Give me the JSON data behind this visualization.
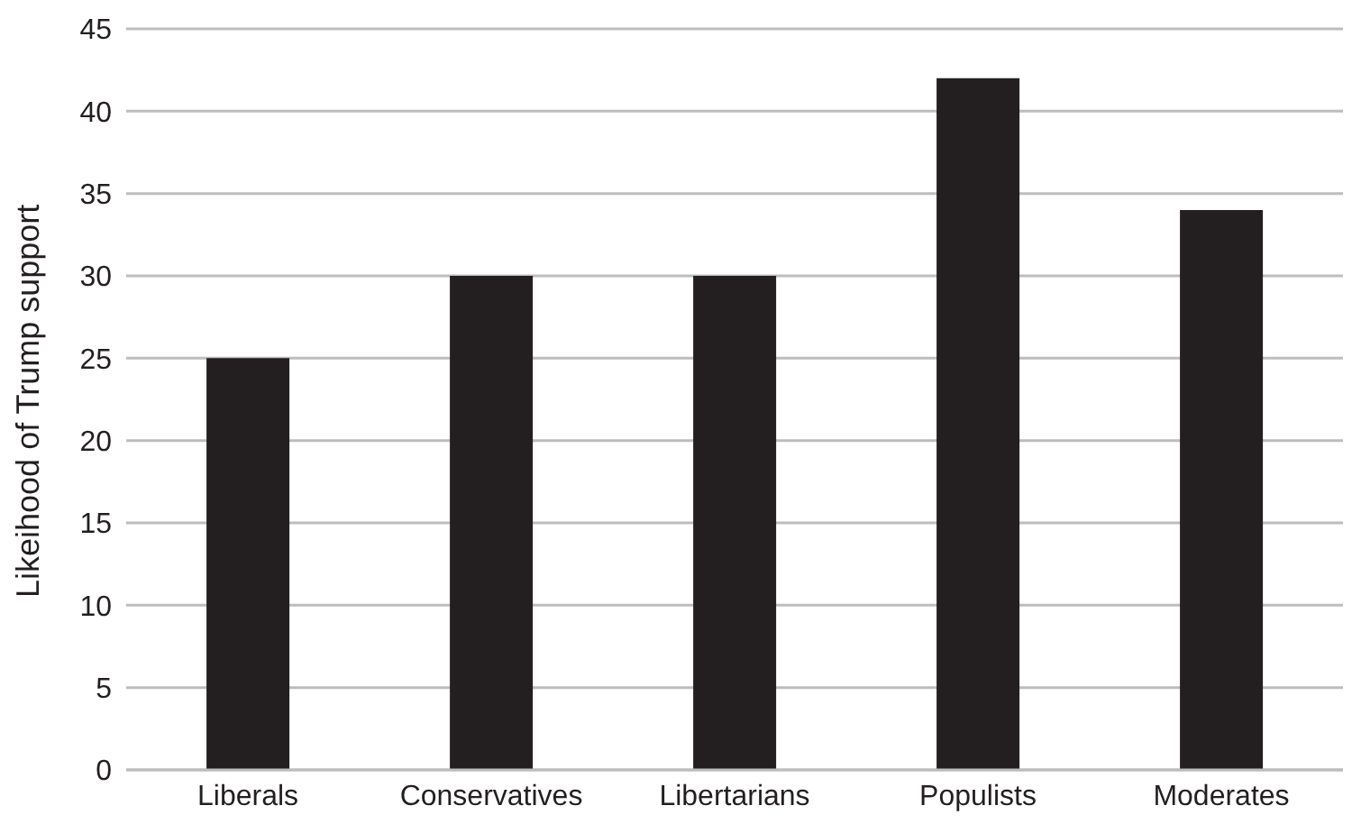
{
  "chart_data": {
    "type": "bar",
    "ylabel": "Likeihood of Trump support",
    "categories": [
      "Liberals",
      "Conservatives",
      "Libertarians",
      "Populists",
      "Moderates"
    ],
    "values": [
      25,
      30,
      30,
      42,
      34
    ],
    "color": "#231f20",
    "ylim": [
      0,
      45
    ],
    "yticks": [
      0,
      5,
      10,
      15,
      20,
      25,
      30,
      35,
      40,
      45
    ],
    "grid": "y",
    "legend": false
  }
}
